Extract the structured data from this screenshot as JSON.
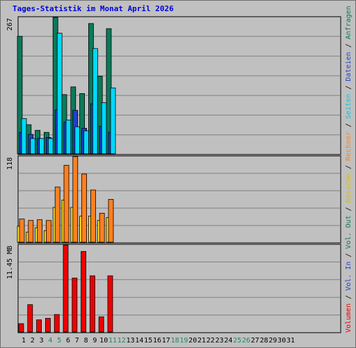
{
  "title": "Tages-Statistik im Monat April 2026",
  "chart_data": [
    {
      "type": "bar",
      "panel": "hits",
      "ymax_label": "267",
      "ymax": 267,
      "categories": [
        "1",
        "2",
        "3",
        "4",
        "5",
        "6",
        "7",
        "8",
        "9",
        "10",
        "11",
        "12",
        "13",
        "14",
        "15",
        "16",
        "17",
        "18",
        "19",
        "20",
        "21",
        "22",
        "23",
        "24",
        "25",
        "26",
        "27",
        "28",
        "29",
        "30",
        "31"
      ],
      "weekend_days": [
        "4",
        "5",
        "11",
        "12",
        "18",
        "19",
        "25",
        "26"
      ],
      "series": [
        {
          "name": "Anfragen",
          "color": "#0a7a5a",
          "values": [
            230,
            57,
            46,
            42,
            267,
            116,
            131,
            118,
            255,
            152,
            245,
            0,
            0,
            0,
            0,
            0,
            0,
            0,
            0,
            0,
            0,
            0,
            0,
            0,
            0,
            0,
            0,
            0,
            0,
            0,
            0
          ]
        },
        {
          "name": "Dateien",
          "color": "#2040cc",
          "values": [
            42,
            38,
            30,
            32,
            86,
            62,
            85,
            50,
            98,
            54,
            42,
            0,
            0,
            0,
            0,
            0,
            0,
            0,
            0,
            0,
            0,
            0,
            0,
            0,
            0,
            0,
            0,
            0,
            0,
            0,
            0
          ]
        },
        {
          "name": "Seiten",
          "color": "#00d8ff",
          "values": [
            69,
            30,
            30,
            30,
            236,
            66,
            53,
            45,
            206,
            100,
            129,
            0,
            0,
            0,
            0,
            0,
            0,
            0,
            0,
            0,
            0,
            0,
            0,
            0,
            0,
            0,
            0,
            0,
            0,
            0,
            0
          ]
        }
      ]
    },
    {
      "type": "bar",
      "panel": "visits",
      "ymax_label": "118",
      "ymax": 118,
      "categories": [
        "1",
        "2",
        "3",
        "4",
        "5",
        "6",
        "7",
        "8",
        "9",
        "10",
        "11",
        "12",
        "13",
        "14",
        "15",
        "16",
        "17",
        "18",
        "19",
        "20",
        "21",
        "22",
        "23",
        "24",
        "25",
        "26",
        "27",
        "28",
        "29",
        "30",
        "31"
      ],
      "series": [
        {
          "name": "Besuche",
          "color": "#ffe21a",
          "values": [
            22,
            14,
            20,
            16,
            48,
            58,
            48,
            36,
            36,
            30,
            34,
            0,
            0,
            0,
            0,
            0,
            0,
            0,
            0,
            0,
            0,
            0,
            0,
            0,
            0,
            0,
            0,
            0,
            0,
            0,
            0
          ]
        },
        {
          "name": "Rechner",
          "color": "#ff8020",
          "values": [
            32,
            30,
            31,
            30,
            76,
            106,
            118,
            94,
            72,
            40,
            59,
            0,
            0,
            0,
            0,
            0,
            0,
            0,
            0,
            0,
            0,
            0,
            0,
            0,
            0,
            0,
            0,
            0,
            0,
            0,
            0
          ]
        }
      ]
    },
    {
      "type": "bar",
      "panel": "volume",
      "ymax_label": "11.45 MB",
      "ymax": 11.45,
      "categories": [
        "1",
        "2",
        "3",
        "4",
        "5",
        "6",
        "7",
        "8",
        "9",
        "10",
        "11",
        "12",
        "13",
        "14",
        "15",
        "16",
        "17",
        "18",
        "19",
        "20",
        "21",
        "22",
        "23",
        "24",
        "25",
        "26",
        "27",
        "28",
        "29",
        "30",
        "31"
      ],
      "series": [
        {
          "name": "Volumen",
          "color": "#ee0000",
          "values": [
            1.1,
            3.6,
            1.6,
            1.8,
            2.3,
            11.45,
            7.1,
            10.6,
            7.4,
            2.0,
            7.4,
            0,
            0,
            0,
            0,
            0,
            0,
            0,
            0,
            0,
            0,
            0,
            0,
            0,
            0,
            0,
            0,
            0,
            0,
            0,
            0
          ]
        }
      ]
    }
  ],
  "right_legend": [
    {
      "text": "Volumen",
      "color": "#ee0000"
    },
    {
      "text": " / ",
      "color": "#000000"
    },
    {
      "text": "Vol. In",
      "color": "#2040cc"
    },
    {
      "text": " / ",
      "color": "#000000"
    },
    {
      "text": "Vol. Out",
      "color": "#0a7a5a"
    },
    {
      "text": " / ",
      "color": "#000000"
    },
    {
      "text": "Besuche",
      "color": "#d8c000"
    },
    {
      "text": " / ",
      "color": "#000000"
    },
    {
      "text": "Rechner",
      "color": "#ff8020"
    },
    {
      "text": " / ",
      "color": "#000000"
    },
    {
      "text": "Seiten",
      "color": "#00c8e8"
    },
    {
      "text": " / ",
      "color": "#000000"
    },
    {
      "text": "Dateien",
      "color": "#2040cc"
    },
    {
      "text": " / ",
      "color": "#000000"
    },
    {
      "text": "Anfragen",
      "color": "#0a7a5a"
    }
  ]
}
